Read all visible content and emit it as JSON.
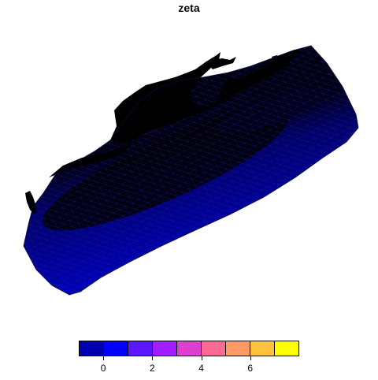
{
  "title": "zeta",
  "legend": {
    "colors": [
      "#0000b0",
      "#0000ff",
      "#5a16ff",
      "#9f1eff",
      "#df3fcf",
      "#ff6a95",
      "#ff9a66",
      "#ffc43c",
      "#ffff00"
    ],
    "ticks": [
      0,
      2,
      4,
      6
    ],
    "range": [
      -1,
      8
    ]
  },
  "map": {
    "mesh_color": "#1a1a88",
    "water_color": "#0000b8",
    "deep_color": "#000014"
  }
}
